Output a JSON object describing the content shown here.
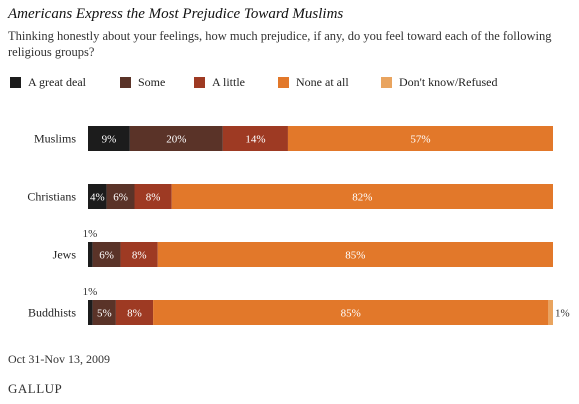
{
  "header": {
    "title": "Americans Express the Most Prejudice Toward Muslims",
    "subtitle": "Thinking honestly about your feelings, how much prejudice, if any, do you feel toward each of the following religious groups?"
  },
  "footer": {
    "date": "Oct 31-Nov 13, 2009",
    "brand": "GALLUP"
  },
  "chart_data": {
    "type": "bar",
    "orientation": "horizontal",
    "stacked": true,
    "categories": [
      "Muslims",
      "Christians",
      "Jews",
      "Buddhists"
    ],
    "series": [
      {
        "name": "A great deal",
        "color": "#1c1c1c",
        "values": [
          9,
          4,
          1,
          1
        ],
        "labels": [
          "9%",
          "4%",
          "1%",
          "1%"
        ]
      },
      {
        "name": "Some",
        "color": "#5a3328",
        "values": [
          20,
          6,
          6,
          5
        ],
        "labels": [
          "20%",
          "6%",
          "6%",
          "5%"
        ]
      },
      {
        "name": "A little",
        "color": "#9e3a23",
        "values": [
          14,
          8,
          8,
          8
        ],
        "labels": [
          "14%",
          "8%",
          "8%",
          "8%"
        ]
      },
      {
        "name": "None at all",
        "color": "#e2782a",
        "values": [
          57,
          82,
          85,
          85
        ],
        "labels": [
          "57%",
          "82%",
          "85%",
          "85%"
        ]
      },
      {
        "name": "Don't know/Refused",
        "color": "#e9a45f",
        "values": [
          0,
          0,
          0,
          1
        ],
        "labels": [
          "",
          "",
          "",
          "1%"
        ]
      }
    ],
    "xlim": [
      0,
      100
    ],
    "grid": false,
    "legend_position": "top"
  }
}
